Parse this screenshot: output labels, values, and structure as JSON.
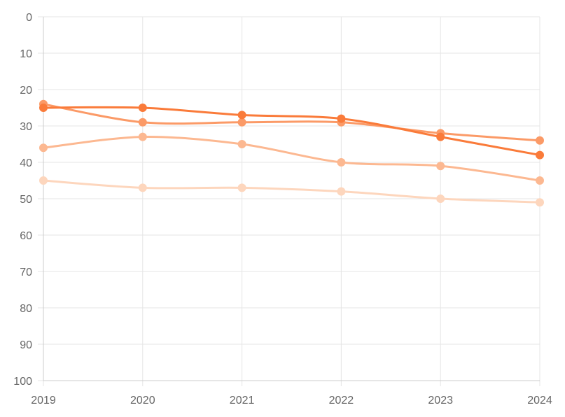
{
  "chart_data": {
    "type": "line",
    "title": "",
    "xlabel": "",
    "ylabel": "",
    "x": [
      "2019",
      "2020",
      "2021",
      "2022",
      "2023",
      "2024"
    ],
    "ylim": [
      0,
      100
    ],
    "y_reversed": true,
    "y_ticks": [
      0,
      10,
      20,
      30,
      40,
      50,
      60,
      70,
      80,
      90,
      100
    ],
    "grid": true,
    "legend": "none",
    "series": [
      {
        "color": "#fa7b3a",
        "values": [
          25,
          25,
          27,
          28,
          33,
          38
        ]
      },
      {
        "color": "#fb9a67",
        "values": [
          24,
          29,
          29,
          29,
          32,
          34
        ]
      },
      {
        "color": "#fcb891",
        "values": [
          36,
          33,
          35,
          40,
          41,
          45
        ]
      },
      {
        "color": "#fdd6bd",
        "values": [
          45,
          47,
          47,
          48,
          50,
          51
        ]
      }
    ]
  }
}
